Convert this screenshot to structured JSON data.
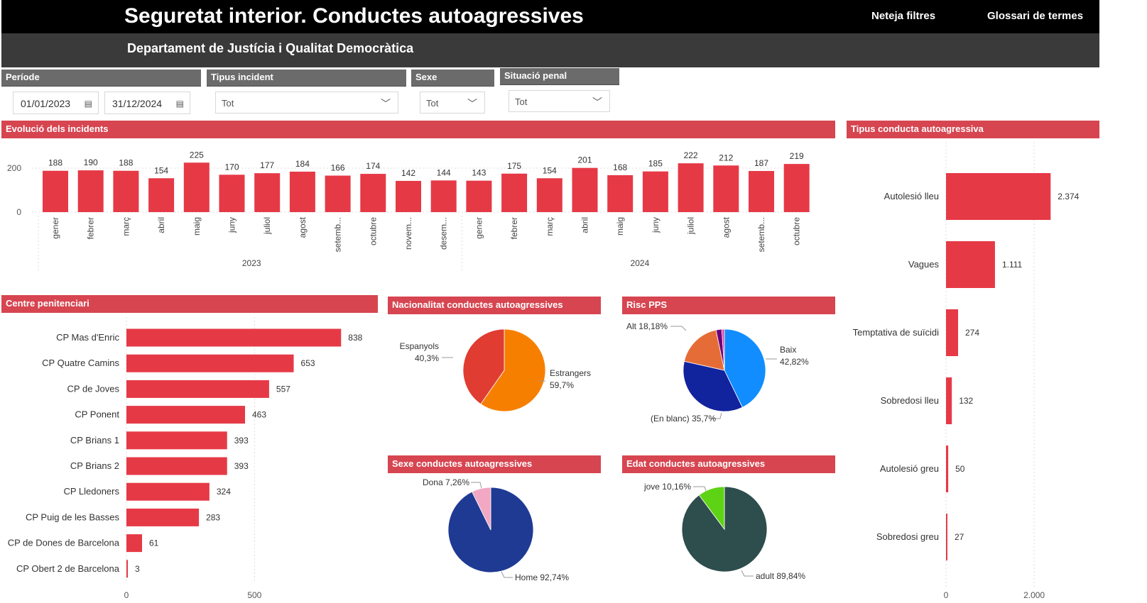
{
  "header": {
    "title": "Seguretat interior. Conductes autoagressives",
    "subtitle": "Departament de Justícia i Qualitat Democràtica",
    "clear_filters": "Neteja filtres",
    "glossary": "Glossari de termes"
  },
  "filters": {
    "period": {
      "label": "Període",
      "start": "01/01/2023",
      "end": "31/12/2024"
    },
    "incident_type": {
      "label": "Tipus incident",
      "value": "Tot"
    },
    "sex": {
      "label": "Sexe",
      "value": "Tot"
    },
    "penal_status": {
      "label": "Situació penal",
      "value": "Tot"
    }
  },
  "colors": {
    "accent": "#e63946",
    "header_red": "#d64550"
  },
  "chart_data": [
    {
      "id": "evolution",
      "type": "bar",
      "title": "Evolució dels incidents",
      "categories": [
        "gener",
        "febrer",
        "març",
        "abril",
        "maig",
        "juny",
        "juliol",
        "agost",
        "setemb...",
        "octubre",
        "novem...",
        "desem...",
        "gener",
        "febrer",
        "març",
        "abril",
        "maig",
        "juny",
        "juliol",
        "agost",
        "setemb...",
        "octubre"
      ],
      "years": [
        {
          "label": "2023",
          "count": 12
        },
        {
          "label": "2024",
          "count": 10
        }
      ],
      "values": [
        188,
        190,
        188,
        154,
        225,
        170,
        177,
        184,
        166,
        174,
        142,
        144,
        143,
        175,
        154,
        201,
        168,
        185,
        222,
        212,
        187,
        219
      ],
      "yticks": [
        "0",
        "200"
      ],
      "ylim": [
        0,
        260
      ]
    },
    {
      "id": "centres",
      "type": "bar",
      "orientation": "horizontal",
      "title": "Centre penitenciari",
      "categories": [
        "CP Mas d'Enric",
        "CP Quatre Camins",
        "CP de Joves",
        "CP Ponent",
        "CP Brians 1",
        "CP Brians 2",
        "CP Lledoners",
        "CP Puig de les Basses",
        "CP de Dones de Barcelona",
        "CP Obert 2 de Barcelona"
      ],
      "values": [
        838,
        653,
        557,
        463,
        393,
        393,
        324,
        283,
        61,
        3
      ],
      "xticks": [
        "0",
        "500"
      ],
      "xlim": [
        0,
        850
      ]
    },
    {
      "id": "conduct_type",
      "type": "bar",
      "orientation": "horizontal",
      "title": "Tipus conducta autoagressiva",
      "categories": [
        "Autolesió lleu",
        "Vagues",
        "Temptativa de suïcidi",
        "Sobredosi lleu",
        "Autolesió greu",
        "Sobredosi greu"
      ],
      "values": [
        2374,
        1111,
        274,
        132,
        50,
        27
      ],
      "value_labels": [
        "2.374",
        "1.111",
        "274",
        "132",
        "50",
        "27"
      ],
      "xticks": [
        "0",
        "2.000"
      ],
      "xlim": [
        0,
        2400
      ]
    },
    {
      "id": "nationality",
      "type": "pie",
      "title": "Nacionalitat conductes autoagressives",
      "slices": [
        {
          "label": "Estrangers",
          "pct": "59,7%",
          "value": 59.7,
          "color": "#f77f00"
        },
        {
          "label": "Espanyols",
          "pct": "40,3%",
          "value": 40.3,
          "color": "#e03c31"
        }
      ]
    },
    {
      "id": "risk",
      "type": "pie",
      "title": "Risc PPS",
      "slices": [
        {
          "label": "Baix",
          "pct": "42,82%",
          "value": 42.82,
          "color": "#118dff"
        },
        {
          "label": "(En blanc)",
          "pct": "35,7%",
          "value": 35.7,
          "color": "#12239e"
        },
        {
          "label": "Alt",
          "pct": "18,18%",
          "value": 18.18,
          "color": "#e66c37"
        },
        {
          "label": "",
          "pct": "",
          "value": 2.3,
          "color": "#6b007b"
        },
        {
          "label": "",
          "pct": "",
          "value": 1.0,
          "color": "#e044a7"
        }
      ]
    },
    {
      "id": "sex",
      "type": "pie",
      "title": "Sexe conductes autoagressives",
      "slices": [
        {
          "label": "Home",
          "pct": "92,74%",
          "value": 92.74,
          "color": "#1f3a93"
        },
        {
          "label": "Dona",
          "pct": "7,26%",
          "value": 7.26,
          "color": "#f2a7c3"
        }
      ]
    },
    {
      "id": "age",
      "type": "pie",
      "title": "Edat conductes autoagressives",
      "slices": [
        {
          "label": "adult",
          "pct": "89,84%",
          "value": 89.84,
          "color": "#2e4d4d"
        },
        {
          "label": "jove",
          "pct": "10,16%",
          "value": 10.16,
          "color": "#5ed316"
        }
      ]
    }
  ]
}
